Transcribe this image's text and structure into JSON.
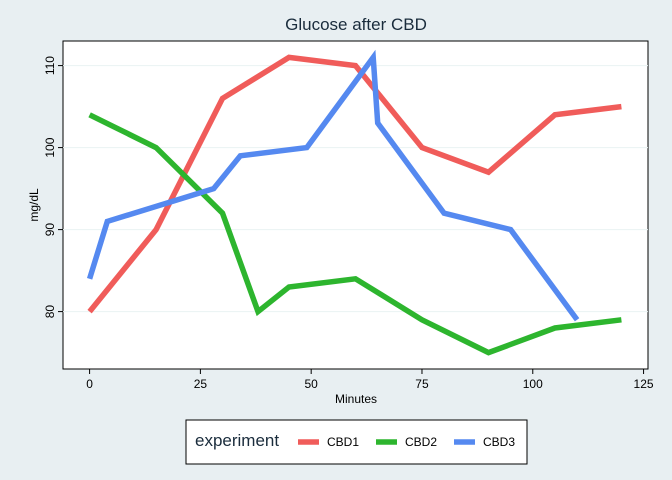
{
  "chart_data": {
    "type": "line",
    "title": "Glucose after CBD",
    "xlabel": "Minutes",
    "ylabel": "mg/dL",
    "xlim": [
      -6,
      126
    ],
    "ylim": [
      73,
      113
    ],
    "xticks": [
      0,
      25,
      50,
      75,
      100,
      125
    ],
    "yticks": [
      80,
      90,
      100,
      110
    ],
    "grid": true,
    "legend": {
      "title": "experiment",
      "position": "bottom"
    },
    "series": [
      {
        "name": "CBD1",
        "color": "#f05c5a",
        "x": [
          0,
          15,
          30,
          45,
          60,
          75,
          90,
          105,
          120
        ],
        "y": [
          80,
          90,
          106,
          111,
          110,
          100,
          97,
          104,
          105
        ]
      },
      {
        "name": "CBD2",
        "color": "#2db52e",
        "x": [
          0,
          15,
          30,
          38,
          45,
          60,
          75,
          90,
          105,
          120
        ],
        "y": [
          104,
          100,
          92,
          80,
          83,
          84,
          79,
          75,
          78,
          79
        ]
      },
      {
        "name": "CBD3",
        "color": "#5589f0",
        "x": [
          0,
          4,
          28,
          34,
          49,
          64,
          65,
          80,
          95,
          110
        ],
        "y": [
          84,
          91,
          95,
          99,
          100,
          111,
          103,
          92,
          90,
          79
        ]
      }
    ]
  }
}
